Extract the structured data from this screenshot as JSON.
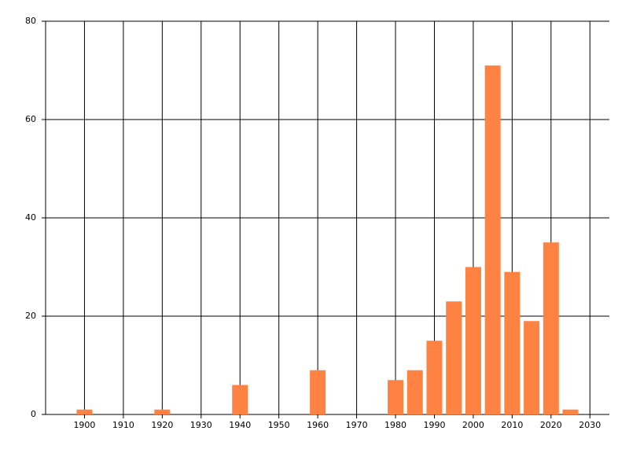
{
  "chart_data": {
    "type": "bar",
    "x": [
      1900,
      1920,
      1940,
      1960,
      1980,
      1985,
      1990,
      1995,
      2000,
      2005,
      2010,
      2015,
      2020,
      2025
    ],
    "values": [
      1,
      1,
      6,
      9,
      7,
      9,
      15,
      23,
      30,
      71,
      29,
      19,
      35,
      1
    ],
    "color": "#fe8241",
    "xlim": [
      1890,
      2035
    ],
    "xticks": [
      1900,
      1910,
      1920,
      1930,
      1940,
      1950,
      1960,
      1970,
      1980,
      1990,
      2000,
      2010,
      2020,
      2030
    ],
    "ylim": [
      0,
      80
    ],
    "yticks": [
      0,
      20,
      40,
      60,
      80
    ],
    "grid": true
  }
}
